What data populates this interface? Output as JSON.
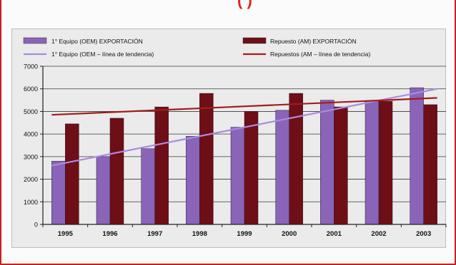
{
  "header": {
    "title_fragment": "(                    )"
  },
  "chart_data": {
    "type": "bar",
    "categories": [
      "1995",
      "1996",
      "1997",
      "1998",
      "1999",
      "2000",
      "2001",
      "2002",
      "2003"
    ],
    "series": [
      {
        "name": "1° Equipo (OEM) EXPORTACIÓN",
        "color": "#8a64b8",
        "values": [
          2800,
          3000,
          3350,
          3900,
          4300,
          5050,
          5500,
          5450,
          6050
        ]
      },
      {
        "name": "Repuesto (AM) EXPORTACIÓN",
        "color": "#6e0e16",
        "values": [
          4450,
          4700,
          5200,
          5800,
          5000,
          5800,
          5200,
          5450,
          5300
        ]
      }
    ],
    "trendlines": [
      {
        "name": "1° Equipo (OEM – línea de tendencia)",
        "color": "#a98be0",
        "start": 2600,
        "end": 6000
      },
      {
        "name": "Repuestos (AM – línea de tendencia)",
        "color": "#a11d1d",
        "start": 4850,
        "end": 5600
      }
    ],
    "ylim": [
      0,
      7000
    ],
    "yticks": [
      "0",
      "1000",
      "2000",
      "3000",
      "4000",
      "5000",
      "6000",
      "7000"
    ],
    "grid": true,
    "legend_position": "top"
  }
}
